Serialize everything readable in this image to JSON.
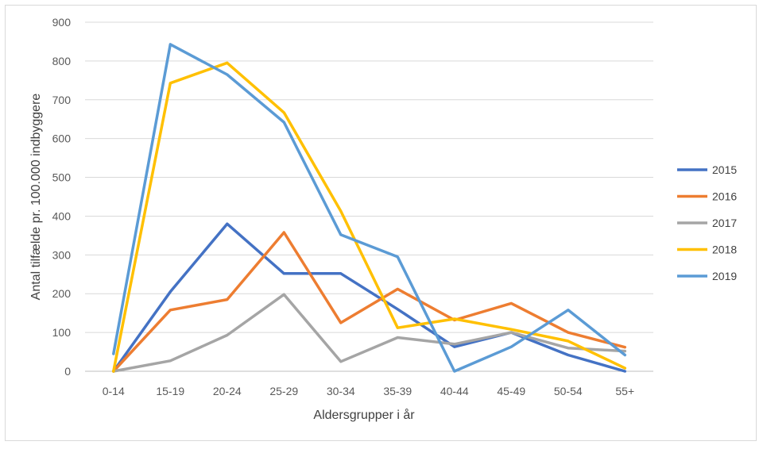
{
  "chart_data": {
    "type": "line",
    "title": "",
    "xlabel": "Aldersgrupper i år",
    "ylabel": "Antal tilfælde pr. 100.000 indbyggere",
    "categories": [
      "0-14",
      "15-19",
      "20-24",
      "25-29",
      "30-34",
      "35-39",
      "40-44",
      "45-49",
      "50-54",
      "55+"
    ],
    "ylim": [
      0,
      900
    ],
    "yticks": [
      0,
      100,
      200,
      300,
      400,
      500,
      600,
      700,
      800,
      900
    ],
    "grid": true,
    "legend_position": "right",
    "series": [
      {
        "name": "2015",
        "color": "#4472c4",
        "values": [
          0,
          205,
          380,
          252,
          252,
          160,
          63,
          100,
          42,
          0
        ]
      },
      {
        "name": "2016",
        "color": "#ed7d31",
        "values": [
          0,
          158,
          185,
          358,
          125,
          212,
          132,
          175,
          100,
          62
        ]
      },
      {
        "name": "2017",
        "color": "#a5a5a5",
        "values": [
          0,
          27,
          93,
          198,
          25,
          87,
          70,
          100,
          60,
          52
        ]
      },
      {
        "name": "2018",
        "color": "#ffc000",
        "values": [
          0,
          743,
          795,
          667,
          413,
          112,
          135,
          108,
          78,
          8
        ]
      },
      {
        "name": "2019",
        "color": "#5b9bd5",
        "values": [
          45,
          843,
          765,
          642,
          352,
          295,
          0,
          63,
          158,
          42
        ]
      }
    ]
  }
}
